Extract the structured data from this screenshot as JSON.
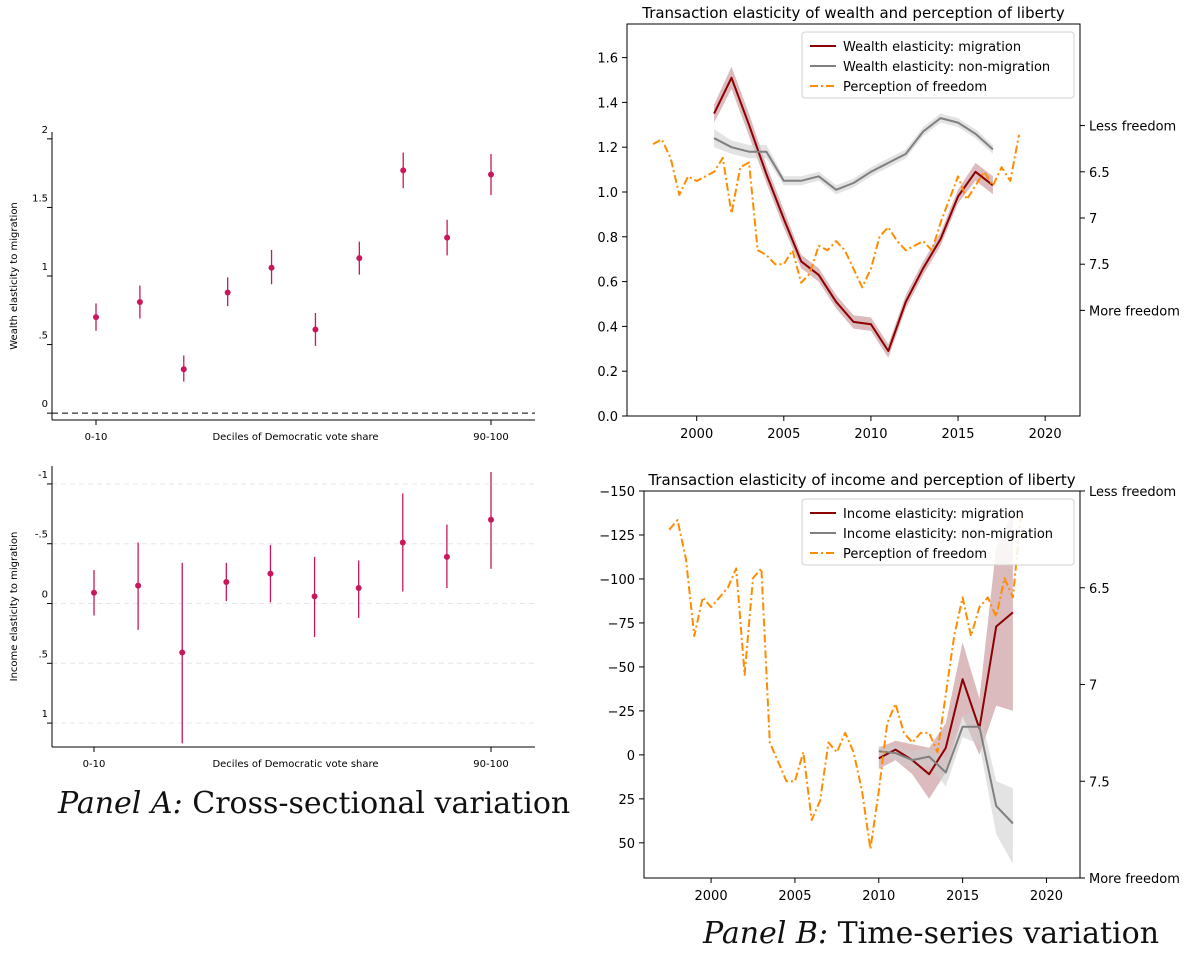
{
  "colors": {
    "dot": "#c8175d",
    "migration": "#8b0000",
    "nonmigration": "#808080",
    "freedom": "#ff8c00",
    "migration_band": "#c48e92",
    "nonmigration_band": "#cccccc",
    "grid": "#e6e6e6"
  },
  "captions": {
    "a_prefix": "Panel A:",
    "a_text": " Cross-sectional variation",
    "b_prefix": "Panel B:",
    "b_text": " Time-series variation"
  },
  "chart_data": [
    {
      "id": "wealth_cross_section",
      "type": "scatter",
      "title": "",
      "xlabel": "Deciles of Democratic vote share",
      "ylabel": "Wealth elasticity to migration",
      "x_tick_labels": [
        "0-10",
        "90-100"
      ],
      "y_ticks": [
        0,
        0.5,
        1,
        1.5,
        2
      ],
      "y_tick_labels": [
        "0",
        ".5",
        "1",
        "1.5",
        "2"
      ],
      "ylim": [
        -0.05,
        2.05
      ],
      "reference_line": 0,
      "deciles": [
        1,
        2,
        3,
        4,
        5,
        6,
        7,
        8,
        9,
        10
      ],
      "values": [
        0.7,
        0.81,
        0.32,
        0.88,
        1.06,
        0.61,
        1.13,
        1.77,
        1.28,
        1.74
      ],
      "ci_low": [
        0.6,
        0.69,
        0.23,
        0.78,
        0.94,
        0.49,
        1.01,
        1.64,
        1.15,
        1.59
      ],
      "ci_high": [
        0.8,
        0.93,
        0.42,
        0.99,
        1.19,
        0.73,
        1.25,
        1.9,
        1.41,
        1.89
      ]
    },
    {
      "id": "income_cross_section",
      "type": "scatter",
      "title": "",
      "xlabel": "Deciles of Democratic vote share",
      "ylabel": "Income elasticity to migration",
      "x_tick_labels": [
        "0-10",
        "90-100"
      ],
      "y_ticks": [
        -1,
        -0.5,
        0,
        0.5,
        1
      ],
      "y_tick_labels": [
        "-1",
        "-.5",
        "0",
        ".5",
        "1"
      ],
      "ylim": [
        -1.15,
        1.2
      ],
      "inverted_y": true,
      "deciles": [
        1,
        2,
        3,
        4,
        5,
        6,
        7,
        8,
        9,
        10
      ],
      "values": [
        -0.09,
        -0.15,
        0.41,
        -0.18,
        -0.25,
        -0.06,
        -0.13,
        -0.51,
        -0.39,
        -0.7
      ],
      "ci_low": [
        -0.28,
        -0.51,
        -0.34,
        -0.34,
        -0.49,
        -0.39,
        -0.36,
        -0.92,
        -0.66,
        -1.1
      ],
      "ci_high": [
        0.1,
        0.22,
        1.17,
        -0.02,
        -0.01,
        0.28,
        0.12,
        -0.1,
        -0.13,
        -0.29
      ]
    },
    {
      "id": "wealth_time_series",
      "type": "line",
      "title": "Transaction elasticity of wealth and perception of liberty",
      "xlim": [
        1996,
        2022
      ],
      "x_ticks": [
        2000,
        2005,
        2010,
        2015,
        2020
      ],
      "ylim": [
        0,
        1.75
      ],
      "y_ticks": [
        0.0,
        0.2,
        0.4,
        0.6,
        0.8,
        1.0,
        1.2,
        1.4,
        1.6
      ],
      "y_tick_labels": [
        "0.0",
        "0.2",
        "0.4",
        "0.6",
        "0.8",
        "1.0",
        "1.2",
        "1.4",
        "1.6"
      ],
      "right_axis": {
        "ticks": [
          6.0,
          6.5,
          7.0,
          7.5,
          8.0
        ],
        "tick_labels": [
          "Less freedom",
          "6.5",
          "7",
          "7.5",
          "More freedom"
        ],
        "lim": [
          5.68,
          8.45
        ]
      },
      "legend_position": "top-right",
      "series": [
        {
          "name": "Wealth elasticity: migration",
          "axis": "left",
          "style": "solid",
          "x": [
            2001,
            2002,
            2003,
            2004,
            2005,
            2006,
            2007,
            2008,
            2009,
            2010,
            2011,
            2012,
            2013,
            2014,
            2015,
            2016,
            2017
          ],
          "values": [
            1.35,
            1.51,
            1.3,
            1.08,
            0.88,
            0.69,
            0.63,
            0.51,
            0.42,
            0.41,
            0.29,
            0.51,
            0.66,
            0.79,
            0.98,
            1.09,
            1.03
          ],
          "band_low": [
            1.31,
            1.46,
            1.25,
            1.04,
            0.84,
            0.66,
            0.6,
            0.48,
            0.39,
            0.38,
            0.26,
            0.48,
            0.63,
            0.76,
            0.95,
            1.05,
            0.99
          ],
          "band_high": [
            1.39,
            1.56,
            1.35,
            1.12,
            0.92,
            0.72,
            0.66,
            0.54,
            0.45,
            0.44,
            0.32,
            0.54,
            0.69,
            0.82,
            1.01,
            1.13,
            1.07
          ]
        },
        {
          "name": "Wealth elasticity: non-migration",
          "axis": "left",
          "style": "solid",
          "x": [
            2001,
            2002,
            2003,
            2004,
            2005,
            2006,
            2007,
            2008,
            2009,
            2010,
            2011,
            2012,
            2013,
            2014,
            2015,
            2016,
            2017
          ],
          "values": [
            1.24,
            1.2,
            1.18,
            1.18,
            1.05,
            1.05,
            1.07,
            1.01,
            1.04,
            1.09,
            1.13,
            1.17,
            1.27,
            1.33,
            1.31,
            1.26,
            1.19
          ],
          "band_low": [
            1.2,
            1.17,
            1.15,
            1.15,
            1.03,
            1.03,
            1.05,
            0.99,
            1.02,
            1.07,
            1.11,
            1.15,
            1.25,
            1.31,
            1.29,
            1.24,
            1.17
          ],
          "band_high": [
            1.28,
            1.23,
            1.21,
            1.21,
            1.07,
            1.07,
            1.09,
            1.03,
            1.06,
            1.11,
            1.15,
            1.19,
            1.29,
            1.35,
            1.33,
            1.28,
            1.21
          ]
        },
        {
          "name": "Perception of freedom",
          "axis": "right",
          "style": "dashdot",
          "x": [
            1997.5,
            1998,
            1998.5,
            1999,
            1999.5,
            2000,
            2000.5,
            2001,
            2001.5,
            2002,
            2002.5,
            2003,
            2003.5,
            2004,
            2004.5,
            2005,
            2005.5,
            2006,
            2006.5,
            2007,
            2007.5,
            2008,
            2008.5,
            2009,
            2009.5,
            2010,
            2010.5,
            2011,
            2011.5,
            2012,
            2012.5,
            2013,
            2013.5,
            2014,
            2014.5,
            2015,
            2015.5,
            2016,
            2016.5,
            2017,
            2017.5,
            2018,
            2018.5
          ],
          "values": [
            6.2,
            6.15,
            6.35,
            6.75,
            6.55,
            6.6,
            6.55,
            6.5,
            6.35,
            6.95,
            6.45,
            6.4,
            7.35,
            7.4,
            7.5,
            7.5,
            7.35,
            7.7,
            7.6,
            7.3,
            7.35,
            7.25,
            7.35,
            7.55,
            7.75,
            7.55,
            7.2,
            7.1,
            7.25,
            7.35,
            7.3,
            7.25,
            7.35,
            7.05,
            6.8,
            6.55,
            6.8,
            6.65,
            6.5,
            6.65,
            6.45,
            6.6,
            6.1
          ]
        }
      ]
    },
    {
      "id": "income_time_series",
      "type": "line",
      "title": "Transaction elasticity of income and perception of liberty",
      "xlim": [
        1996,
        2022
      ],
      "x_ticks": [
        2000,
        2005,
        2010,
        2015,
        2020
      ],
      "ylim": [
        -150,
        70
      ],
      "inverted_y": true,
      "y_ticks": [
        -150,
        -125,
        -100,
        -75,
        -50,
        -25,
        0,
        25,
        50
      ],
      "y_tick_labels": [
        "−150",
        "−125",
        "−100",
        "−75",
        "−50",
        "−25",
        "0",
        "25",
        "50"
      ],
      "right_axis": {
        "ticks": [
          6.0,
          6.5,
          7.0,
          7.5,
          8.0
        ],
        "tick_labels": [
          "Less freedom",
          "6.5",
          "7",
          "7.5",
          "More freedom"
        ],
        "lim": [
          6.0,
          8.0
        ]
      },
      "legend_position": "top-right",
      "series": [
        {
          "name": "Income elasticity: migration",
          "axis": "left",
          "style": "solid",
          "x": [
            2010,
            2011,
            2012,
            2013,
            2014,
            2015,
            2016,
            2017,
            2018
          ],
          "values": [
            2,
            -3,
            3,
            11,
            -4,
            -43,
            -15,
            -73,
            -81
          ],
          "band_low": [
            -4,
            -8,
            -6,
            -4,
            -18,
            -64,
            -32,
            -118,
            -138
          ],
          "band_high": [
            8,
            3,
            11,
            25,
            10,
            -22,
            0,
            -28,
            -25
          ]
        },
        {
          "name": "Income elasticity: non-migration",
          "axis": "left",
          "style": "solid",
          "x": [
            2010,
            2011,
            2012,
            2013,
            2014,
            2015,
            2016,
            2017,
            2018
          ],
          "values": [
            -2,
            -1,
            3,
            1,
            10,
            -16,
            -16,
            29,
            39
          ],
          "band_low": [
            -5,
            -5,
            -2,
            -4,
            2,
            -22,
            -26,
            15,
            19
          ],
          "band_high": [
            1,
            3,
            8,
            6,
            18,
            -10,
            -6,
            45,
            62
          ]
        },
        {
          "name": "Perception of freedom",
          "axis": "right",
          "style": "dashdot",
          "x": [
            1997.5,
            1998,
            1998.5,
            1999,
            1999.5,
            2000,
            2000.5,
            2001,
            2001.5,
            2002,
            2002.5,
            2003,
            2003.5,
            2004,
            2004.5,
            2005,
            2005.5,
            2006,
            2006.5,
            2007,
            2007.5,
            2008,
            2008.5,
            2009,
            2009.5,
            2010,
            2010.5,
            2011,
            2011.5,
            2012,
            2012.5,
            2013,
            2013.5,
            2014,
            2014.5,
            2015,
            2015.5,
            2016,
            2016.5,
            2017,
            2017.5,
            2018,
            2018.5
          ],
          "values": [
            6.2,
            6.15,
            6.35,
            6.75,
            6.55,
            6.6,
            6.55,
            6.5,
            6.4,
            6.95,
            6.45,
            6.4,
            7.3,
            7.4,
            7.5,
            7.5,
            7.35,
            7.7,
            7.6,
            7.3,
            7.35,
            7.25,
            7.35,
            7.55,
            7.85,
            7.55,
            7.2,
            7.1,
            7.25,
            7.3,
            7.25,
            7.25,
            7.35,
            7.05,
            6.75,
            6.55,
            6.75,
            6.6,
            6.55,
            6.65,
            6.45,
            6.55,
            6.1
          ]
        }
      ]
    }
  ]
}
